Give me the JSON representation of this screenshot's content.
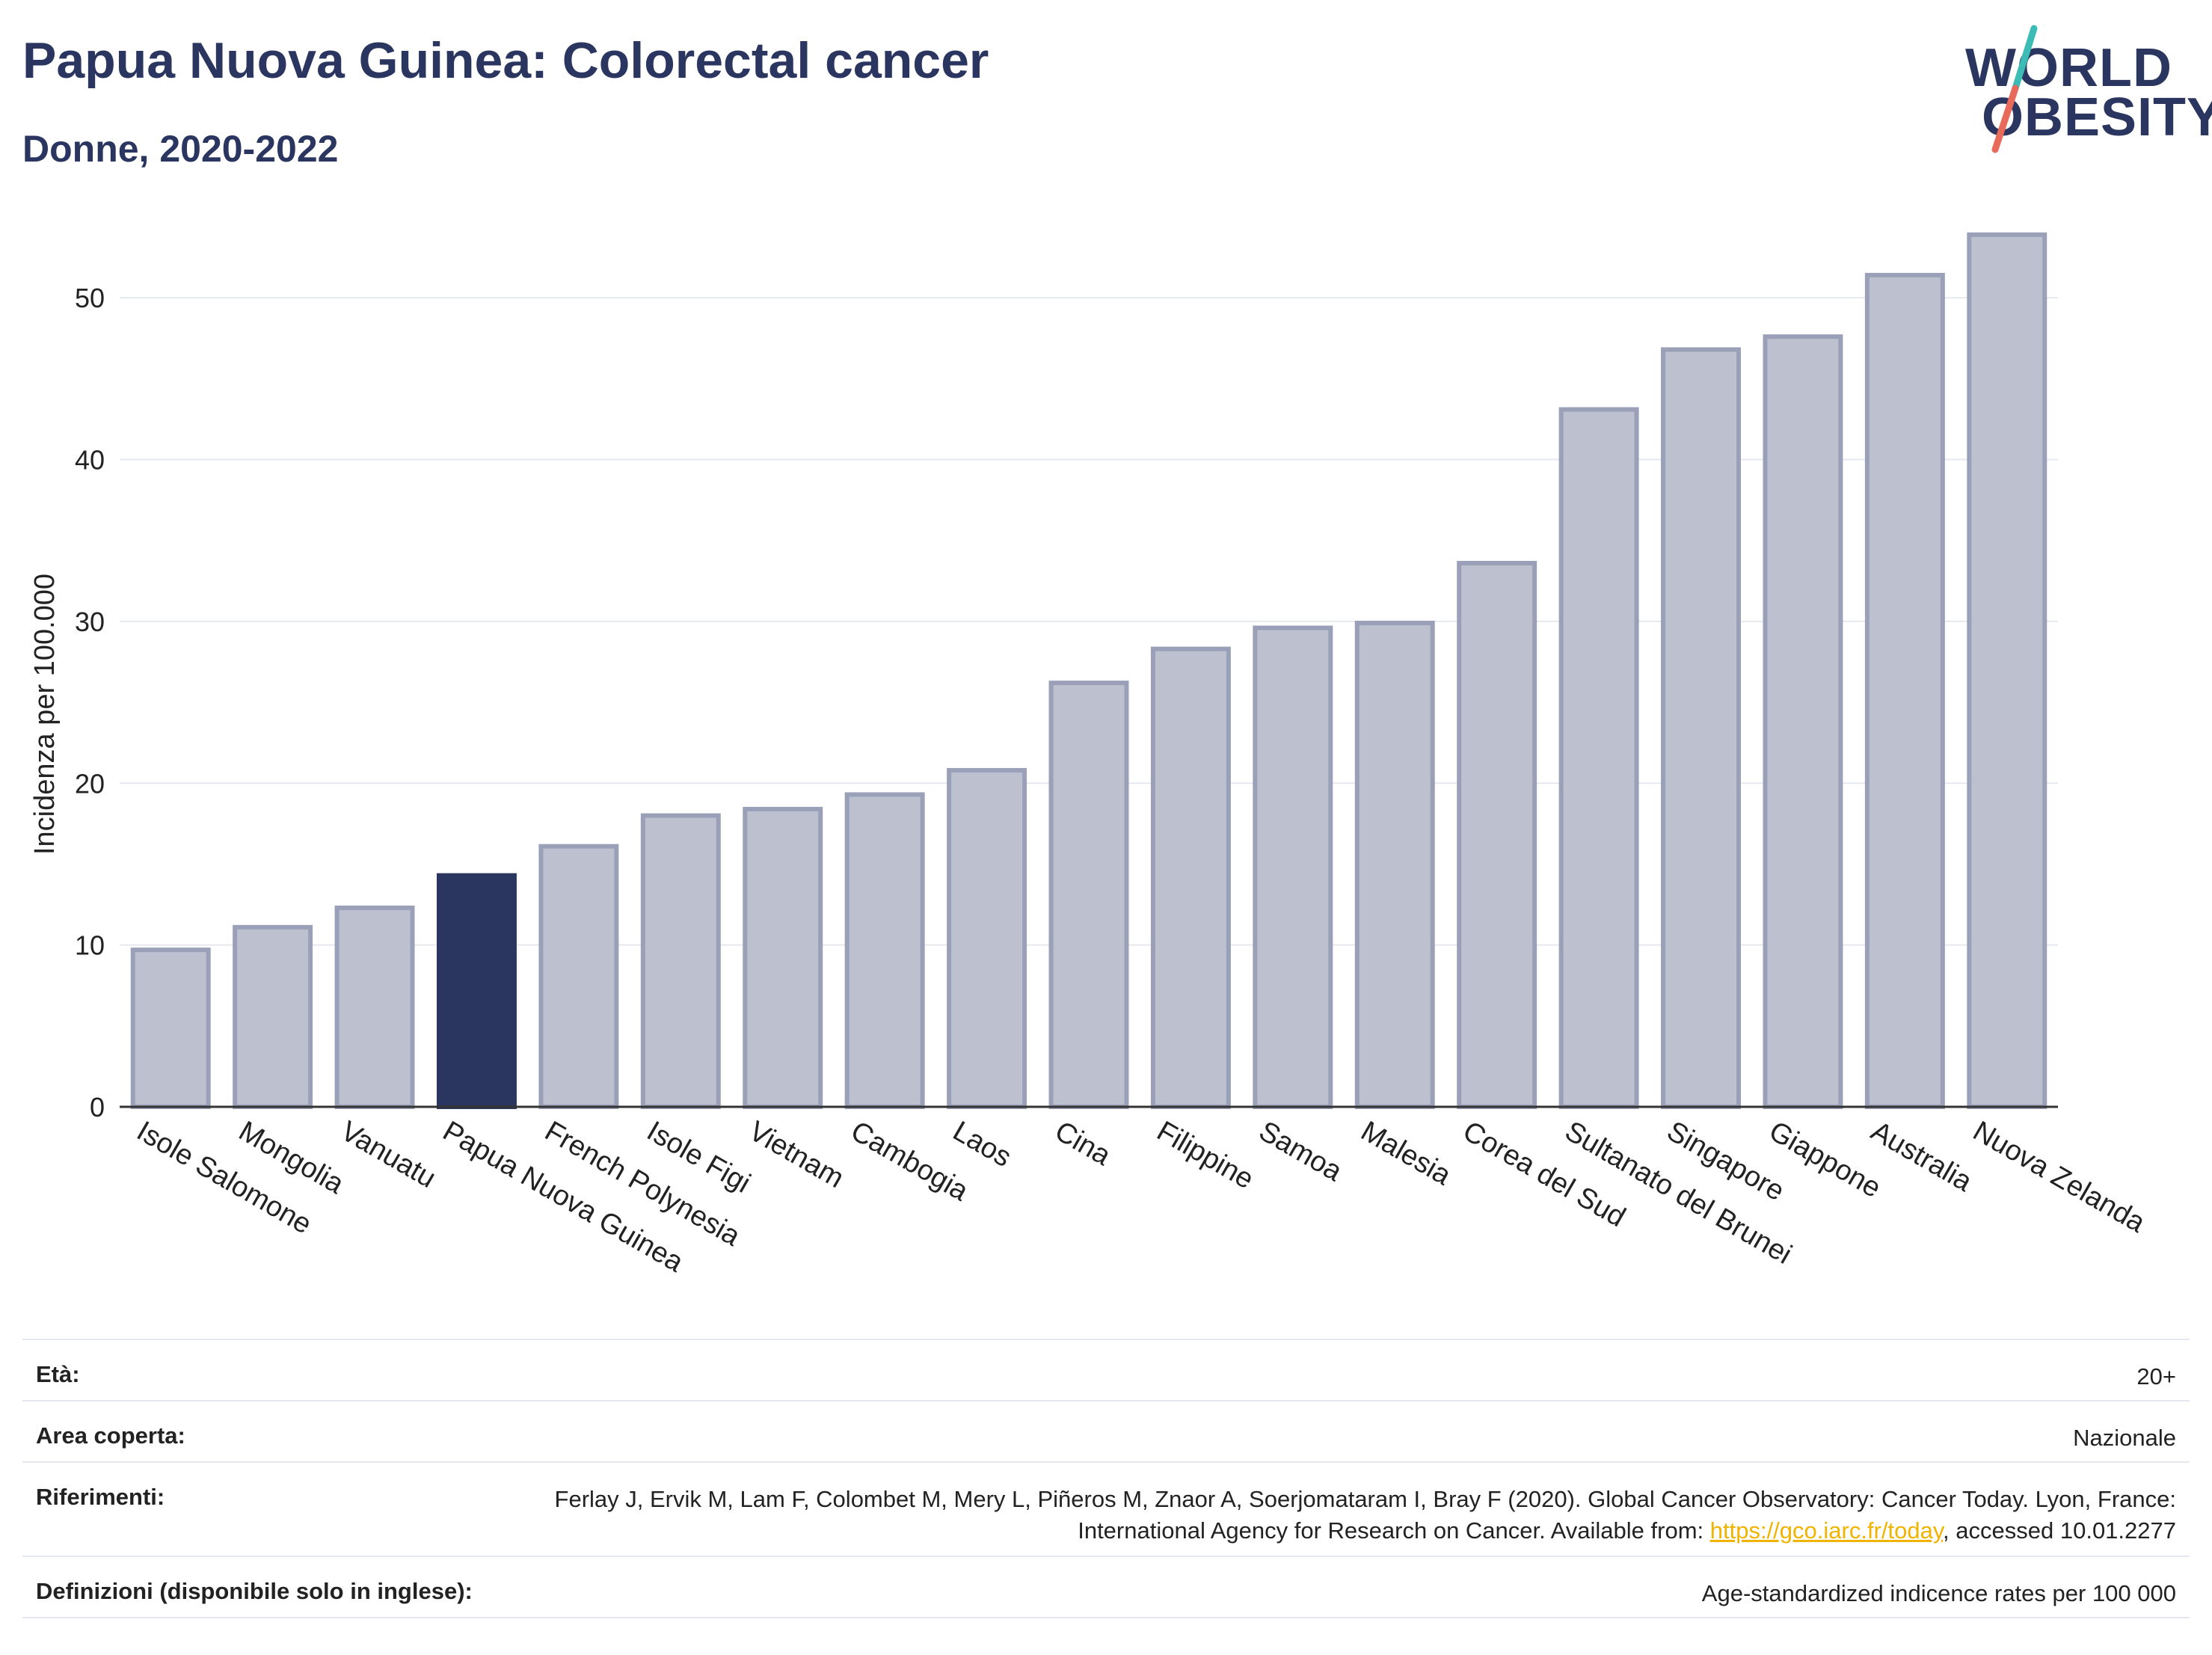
{
  "header": {
    "title": "Papua Nuova Guinea: Colorectal cancer",
    "subtitle": "Donne, 2020-2022"
  },
  "logo": {
    "line1": "WORLD",
    "line2": "OBESITY"
  },
  "colors": {
    "highlight": "#2a3560",
    "bar": "#bcc0cf",
    "bar_stroke": "#9aa0b8",
    "logo_teal": "#3cbcb4",
    "logo_coral": "#e86a5a"
  },
  "chart_data": {
    "type": "bar",
    "ylabel": "Incidenza per 100.000",
    "xlabel": "",
    "ylim": [
      0,
      55
    ],
    "yticks": [
      0,
      10,
      20,
      30,
      40,
      50
    ],
    "grid": true,
    "highlight": "Papua Nuova Guinea",
    "categories": [
      "Isole Salomone",
      "Mongolia",
      "Vanuatu",
      "Papua Nuova Guinea",
      "French Polynesia",
      "Isole Figi",
      "Vietnam",
      "Cambogia",
      "Laos",
      "Cina",
      "Filippine",
      "Samoa",
      "Malesia",
      "Corea del Sud",
      "Sultanato del Brunei",
      "Singapore",
      "Giappone",
      "Australia",
      "Nuova Zelanda"
    ],
    "values": [
      9.7,
      11.1,
      12.3,
      14.3,
      16.1,
      18.0,
      18.4,
      19.3,
      20.8,
      26.2,
      28.3,
      29.6,
      29.9,
      33.6,
      43.1,
      46.8,
      47.6,
      51.4,
      53.9
    ]
  },
  "info": {
    "age_label": "Età:",
    "age_value": "20+",
    "area_label": "Area coperta:",
    "area_value": "Nazionale",
    "refs_label": "Riferimenti:",
    "refs_text_1": "Ferlay J, Ervik M, Lam F, Colombet M, Mery L, Piñeros M, Znaor A, Soerjomataram I, Bray F (2020). Global Cancer Observatory: Cancer Today. Lyon, France: International Agency for Research on Cancer. Available from: ",
    "refs_link": "https://gco.iarc.fr/today",
    "refs_text_2": ", accessed 10.01.2277",
    "defs_label": "Definizioni (disponibile solo in inglese):",
    "defs_value": "Age-standardized indicence rates per 100 000"
  }
}
